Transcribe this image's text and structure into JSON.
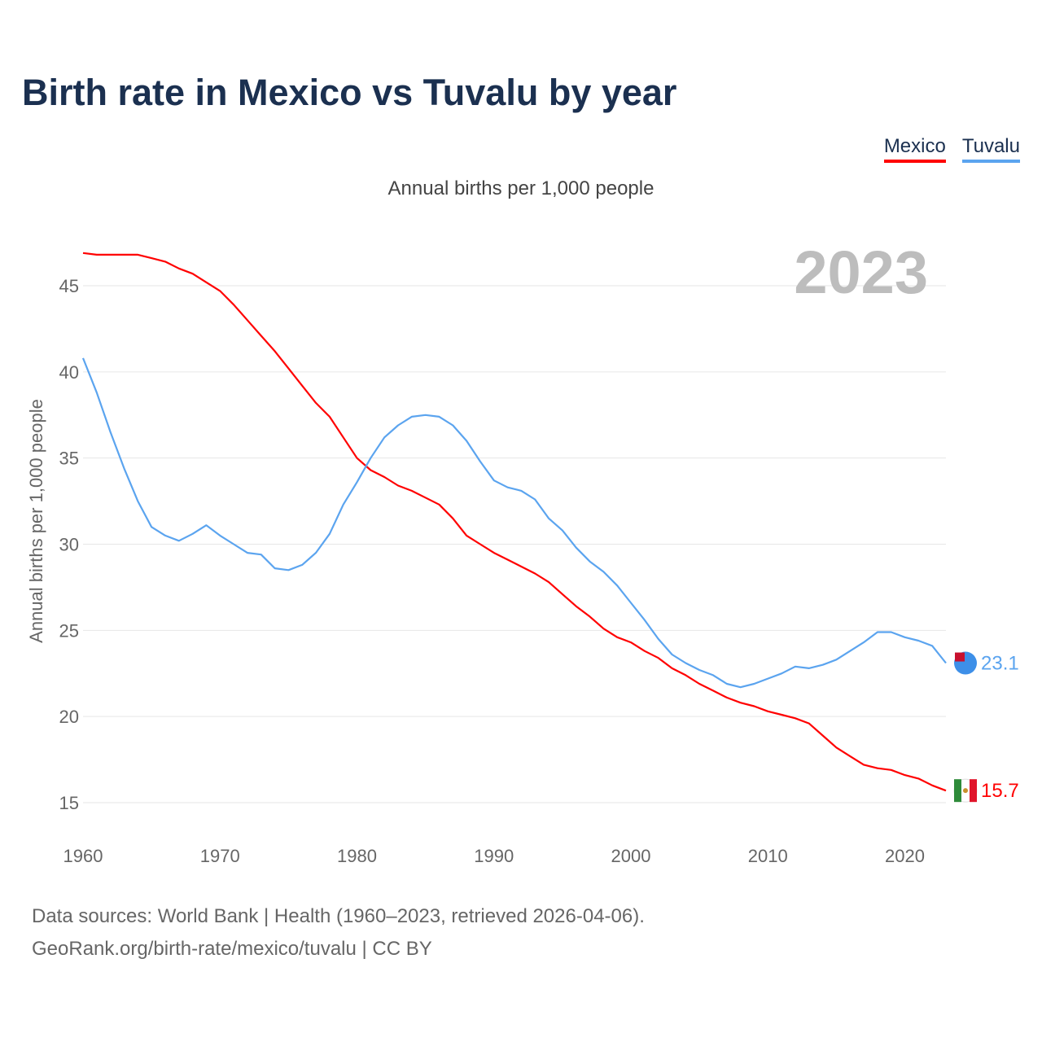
{
  "title": "Birth rate in Mexico vs Tuvalu by year",
  "subtitle": "Annual births per 1,000 people",
  "footer": {
    "line1": "Data sources: World Bank | Health (1960–2023, retrieved 2026-04-06).",
    "line2": "GeoRank.org/birth-rate/mexico/tuvalu | CC BY"
  },
  "chart_data": {
    "type": "line",
    "title": "Birth rate in Mexico vs Tuvalu by year",
    "ylabel": "Annual births per 1,000 people",
    "xlabel": "",
    "year_label": "2023",
    "xlim": [
      1960,
      2023
    ],
    "ylim": [
      15,
      45
    ],
    "x_ticks": [
      "1960",
      "1970",
      "1980",
      "1990",
      "2000",
      "2010",
      "2020"
    ],
    "y_ticks": [
      "15",
      "20",
      "25",
      "30",
      "35",
      "40",
      "45"
    ],
    "grid": true,
    "legend_placement": "top-right",
    "series": [
      {
        "name": "Mexico",
        "color": "#ff0000",
        "end_label": "15.7",
        "values": [
          46.9,
          46.8,
          46.8,
          46.8,
          46.8,
          46.6,
          46.4,
          46.0,
          45.7,
          45.2,
          44.7,
          43.9,
          43.0,
          42.1,
          41.2,
          40.2,
          39.2,
          38.2,
          37.4,
          36.2,
          35.0,
          34.3,
          33.9,
          33.4,
          33.1,
          32.7,
          32.3,
          31.5,
          30.5,
          30.0,
          29.5,
          29.1,
          28.7,
          28.3,
          27.8,
          27.1,
          26.4,
          25.8,
          25.1,
          24.6,
          24.3,
          23.8,
          23.4,
          22.8,
          22.4,
          21.9,
          21.5,
          21.1,
          20.8,
          20.6,
          20.3,
          20.1,
          19.9,
          19.6,
          18.9,
          18.2,
          17.7,
          17.2,
          17.0,
          16.9,
          16.6,
          16.4,
          16.0,
          15.7
        ]
      },
      {
        "name": "Tuvalu",
        "color": "#5ba4ef",
        "end_label": "23.1",
        "values": [
          40.8,
          38.8,
          36.5,
          34.4,
          32.5,
          31.0,
          30.5,
          30.2,
          30.6,
          31.1,
          30.5,
          30.0,
          29.5,
          29.4,
          28.6,
          28.5,
          28.8,
          29.5,
          30.6,
          32.3,
          33.6,
          35.0,
          36.2,
          36.9,
          37.4,
          37.5,
          37.4,
          36.9,
          36.0,
          34.8,
          33.7,
          33.3,
          33.1,
          32.6,
          31.5,
          30.8,
          29.8,
          29.0,
          28.4,
          27.6,
          26.6,
          25.6,
          24.5,
          23.6,
          23.1,
          22.7,
          22.4,
          21.9,
          21.7,
          21.9,
          22.2,
          22.5,
          22.9,
          22.8,
          23.0,
          23.3,
          23.8,
          24.3,
          24.9,
          24.9,
          24.6,
          24.4,
          24.1,
          23.1
        ]
      }
    ]
  }
}
